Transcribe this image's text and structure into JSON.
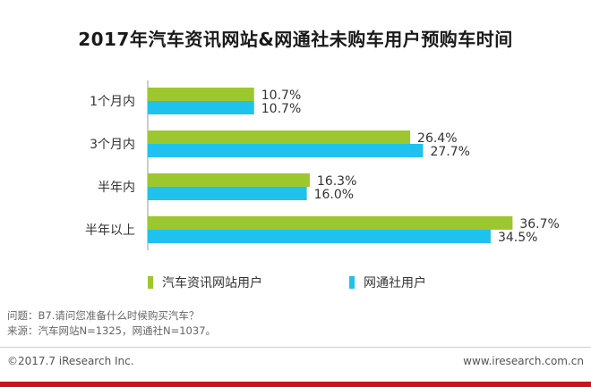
{
  "chart_data": {
    "type": "bar",
    "orientation": "horizontal",
    "title": "2017年汽车资讯网站&网通社未购车用户预购车时间",
    "categories": [
      "1个月内",
      "3个月内",
      "半年内",
      "半年以上"
    ],
    "series": [
      {
        "name": "汽车资讯网站用户",
        "values": [
          10.7,
          26.4,
          16.3,
          36.7
        ],
        "color": "#9dc72f"
      },
      {
        "name": "网通社用户",
        "values": [
          10.7,
          27.7,
          16.0,
          34.5
        ],
        "color": "#1fc2ec"
      }
    ],
    "value_suffix": "%",
    "legend_position": "bottom",
    "grid": false
  },
  "notes": {
    "question": "问题：B7.请问您准备什么时候购买汽车？",
    "source": "来源：汽车网站N=1325，网通社N=1037。"
  },
  "footer": {
    "copyright": "©2017.7 iResearch Inc.",
    "website": "www.iresearch.com.cn"
  },
  "colors": {
    "accent_bar": "#c4161c"
  }
}
